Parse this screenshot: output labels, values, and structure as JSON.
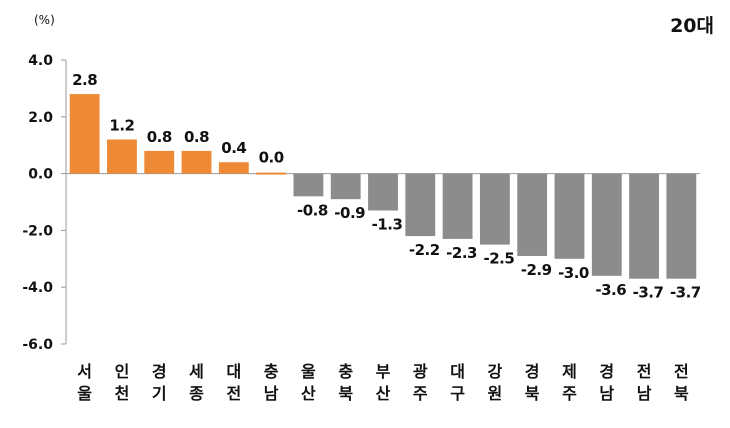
{
  "chart_data": {
    "type": "bar",
    "title": "20대",
    "unit_label": "(%)",
    "ylim": [
      -6.0,
      4.0
    ],
    "y_ticks": [
      "4.0",
      "2.0",
      "0.0",
      "-2.0",
      "-4.0",
      "-6.0"
    ],
    "y_tick_values": [
      4.0,
      2.0,
      0.0,
      -2.0,
      -4.0,
      -6.0
    ],
    "categories": [
      [
        "서",
        "울"
      ],
      [
        "인",
        "천"
      ],
      [
        "경",
        "기"
      ],
      [
        "세",
        "종"
      ],
      [
        "대",
        "전"
      ],
      [
        "충",
        "남"
      ],
      [
        "울",
        "산"
      ],
      [
        "충",
        "북"
      ],
      [
        "부",
        "산"
      ],
      [
        "광",
        "주"
      ],
      [
        "대",
        "구"
      ],
      [
        "강",
        "원"
      ],
      [
        "경",
        "북"
      ],
      [
        "제",
        "주"
      ],
      [
        "경",
        "남"
      ],
      [
        "전",
        "남"
      ],
      [
        "전",
        "북"
      ]
    ],
    "values": [
      2.8,
      1.2,
      0.8,
      0.8,
      0.4,
      0.0,
      -0.8,
      -0.9,
      -1.3,
      -2.2,
      -2.3,
      -2.5,
      -2.9,
      -3.0,
      -3.6,
      -3.7,
      -3.7
    ],
    "value_labels": [
      "2.8",
      "1.2",
      "0.8",
      "0.8",
      "0.4",
      "0.0",
      "-0.8",
      "-0.9",
      "-1.3",
      "-2.2",
      "-2.3",
      "-2.5",
      "-2.9",
      "-3.0",
      "-3.6",
      "-3.7",
      "-3.7"
    ],
    "colors": {
      "positive": "#ee8a35",
      "negative": "#8c8c8c",
      "axis": "#9a9a9a",
      "text": "#111111"
    },
    "grid": false,
    "legend": "none"
  }
}
